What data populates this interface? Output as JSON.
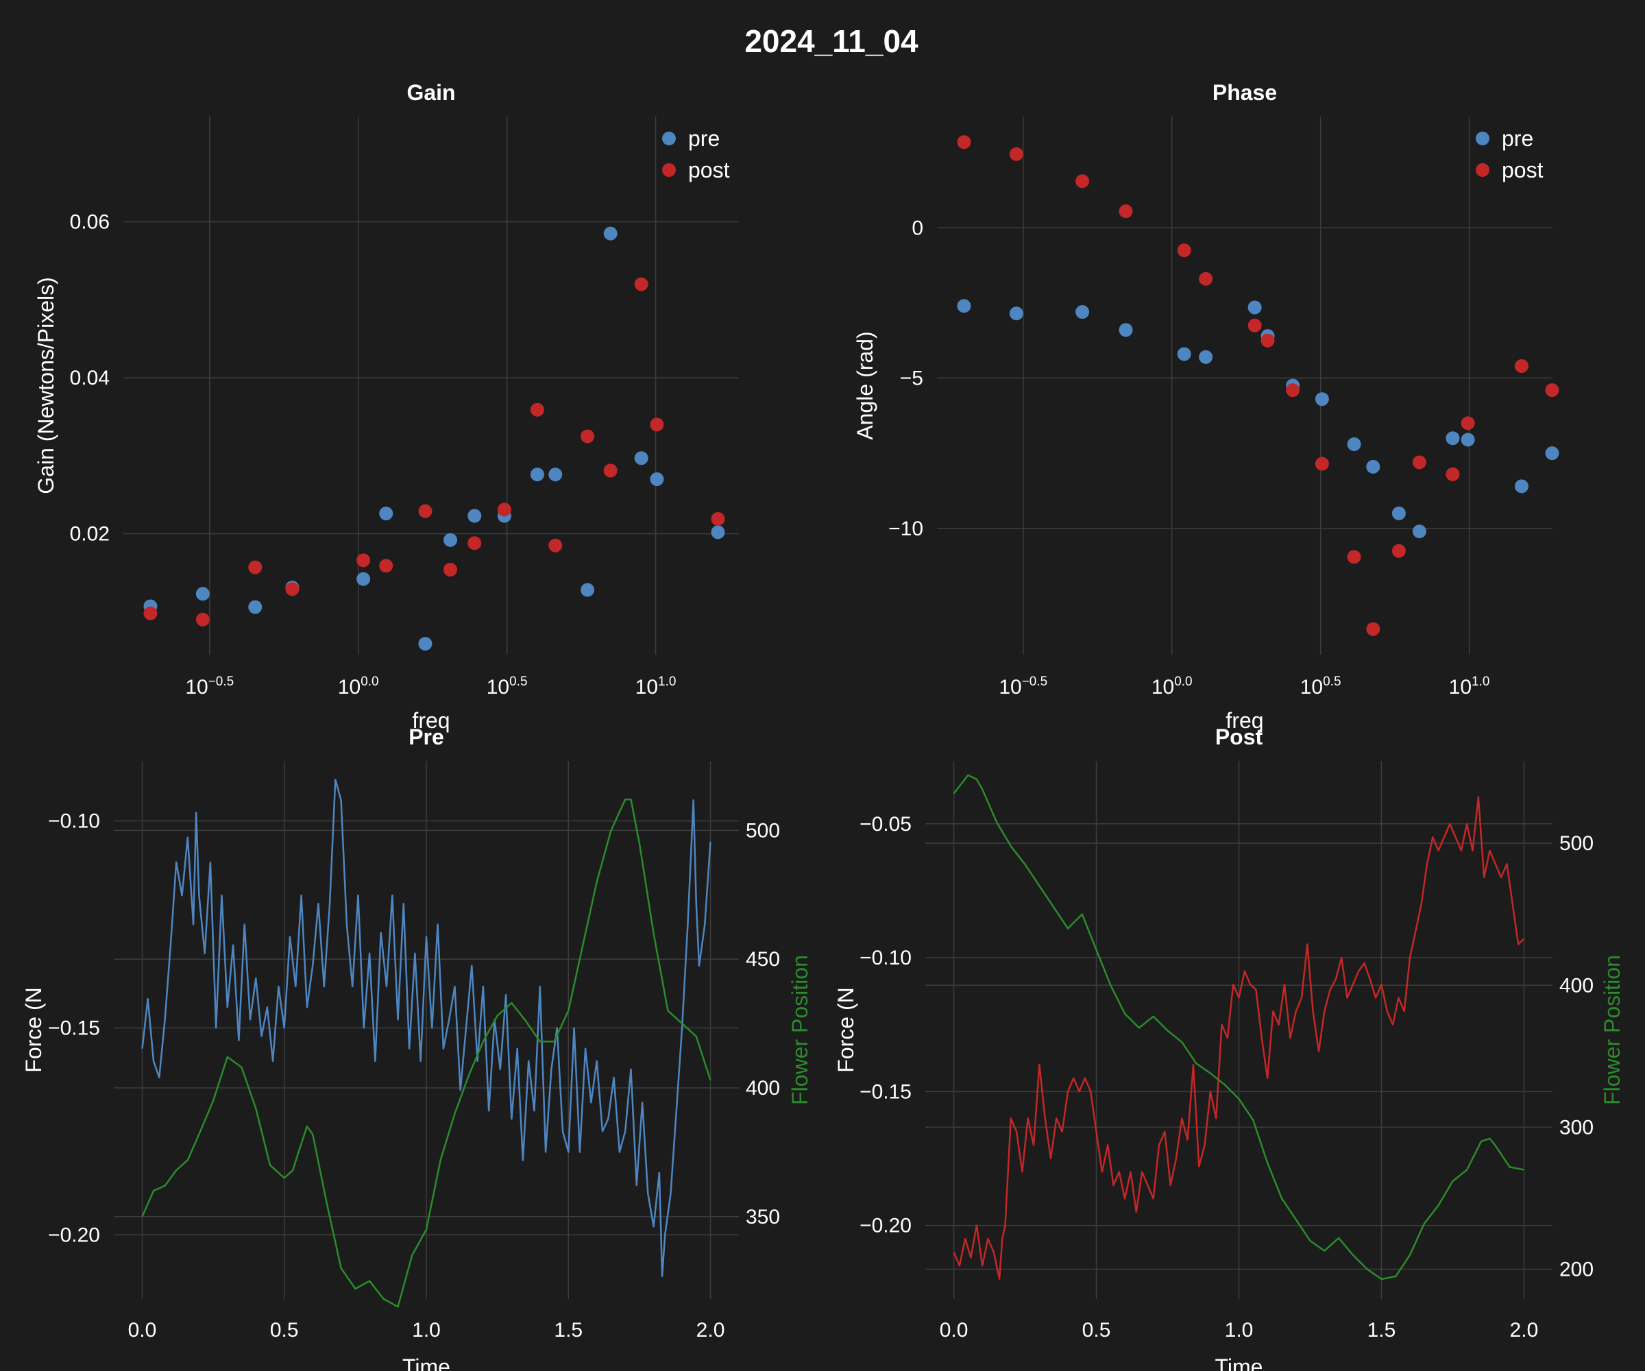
{
  "suptitle": "2024_11_04",
  "colors": {
    "background": "#1c1c1c",
    "pre": "#4e86c2",
    "post": "#c42727",
    "flower": "#2a8c2a",
    "text": "#ffffff",
    "grid": "#3d3d3d"
  },
  "chart_data": [
    {
      "type": "scatter",
      "title": "Gain",
      "xlabel": "freq",
      "ylabel": "Gain (Newtons/Pixels)",
      "x_scale": "log10",
      "x_ticks": [
        {
          "base": "10",
          "exp": "−0.5",
          "value": 0.3162
        },
        {
          "base": "10",
          "exp": "0.0",
          "value": 1.0
        },
        {
          "base": "10",
          "exp": "0.5",
          "value": 3.162
        },
        {
          "base": "10",
          "exp": "1.0",
          "value": 10.0
        }
      ],
      "xlim": [
        0.1622,
        19.05
      ],
      "y_ticks": [
        "0.02",
        "0.04",
        "0.06"
      ],
      "ylim": [
        0.0045,
        0.0735
      ],
      "grid": true,
      "legend": {
        "placement": "top-right",
        "entries": [
          "pre",
          "post"
        ]
      },
      "series": [
        {
          "name": "pre",
          "color": "#4e86c2",
          "x": [
            0.2,
            0.3,
            0.45,
            0.6,
            1.04,
            1.24,
            1.68,
            2.04,
            2.46,
            3.1,
            4.0,
            4.6,
            5.9,
            7.05,
            8.95,
            10.1,
            16.2
          ],
          "y": [
            0.0107,
            0.0123,
            0.0106,
            0.0131,
            0.0142,
            0.0226,
            0.0059,
            0.0192,
            0.0223,
            0.0223,
            0.0276,
            0.0276,
            0.0128,
            0.0585,
            0.0297,
            0.027,
            0.0202
          ]
        },
        {
          "name": "post",
          "color": "#c42727",
          "x": [
            0.2,
            0.3,
            0.45,
            0.6,
            1.04,
            1.24,
            1.68,
            2.04,
            2.46,
            3.1,
            4.0,
            4.6,
            5.9,
            7.05,
            8.95,
            10.1,
            16.2
          ],
          "y": [
            0.0098,
            0.009,
            0.0157,
            0.0129,
            0.0166,
            0.0159,
            0.0229,
            0.0154,
            0.0188,
            0.0231,
            0.0359,
            0.0185,
            0.0325,
            0.0281,
            0.052,
            0.034,
            0.0219
          ]
        }
      ]
    },
    {
      "type": "scatter",
      "title": "Phase",
      "xlabel": "freq",
      "ylabel": "Angle (rad)",
      "x_scale": "log10",
      "x_ticks": [
        {
          "base": "10",
          "exp": "−0.5",
          "value": 0.3162
        },
        {
          "base": "10",
          "exp": "0.0",
          "value": 1.0
        },
        {
          "base": "10",
          "exp": "0.5",
          "value": 3.162
        },
        {
          "base": "10",
          "exp": "1.0",
          "value": 10.0
        }
      ],
      "xlim": [
        0.1622,
        19.05
      ],
      "y_ticks": [
        "−10",
        "−5",
        "0"
      ],
      "y_tick_values": [
        -10,
        -5,
        0
      ],
      "ylim": [
        -14.2,
        3.7
      ],
      "grid": true,
      "legend": {
        "placement": "top-right",
        "entries": [
          "pre",
          "post"
        ]
      },
      "series": [
        {
          "name": "pre",
          "color": "#4e86c2",
          "x": [
            0.2,
            0.3,
            0.5,
            0.7,
            1.1,
            1.3,
            1.9,
            2.1,
            2.55,
            3.2,
            4.1,
            4.75,
            5.8,
            6.8,
            8.8,
            9.9,
            15.0,
            19.0
          ],
          "y": [
            -2.6,
            -2.85,
            -2.8,
            -3.4,
            -4.2,
            -4.3,
            -2.65,
            -3.6,
            -5.25,
            -5.7,
            -7.2,
            -7.95,
            -9.5,
            -10.1,
            -7.0,
            -7.05,
            -8.6,
            -7.5
          ]
        },
        {
          "name": "post",
          "color": "#c42727",
          "x": [
            0.2,
            0.3,
            0.5,
            0.7,
            1.1,
            1.3,
            1.9,
            2.1,
            2.55,
            3.2,
            4.1,
            4.75,
            5.8,
            6.8,
            8.8,
            9.9,
            15.0,
            19.0
          ],
          "y": [
            2.85,
            2.45,
            1.55,
            0.55,
            -0.75,
            -1.7,
            -3.25,
            -3.75,
            -5.4,
            -7.85,
            -10.95,
            -13.35,
            -10.75,
            -7.8,
            -8.2,
            -6.5,
            -4.6,
            -5.4
          ]
        }
      ]
    },
    {
      "type": "line",
      "title": "Pre",
      "xlabel": "Time",
      "ylabel": "Force (N",
      "y2label": "Flower Position",
      "x_ticks": [
        "0.0",
        "0.5",
        "1.0",
        "1.5",
        "2.0"
      ],
      "xlim": [
        -0.1,
        2.1
      ],
      "y_ticks": [
        "−0.20",
        "−0.15",
        "−0.10"
      ],
      "y_tick_values": [
        -0.2,
        -0.15,
        -0.1
      ],
      "ylim": [
        -0.2155,
        -0.0855
      ],
      "y2_ticks": [
        "350",
        "400",
        "450",
        "500"
      ],
      "y2_tick_values": [
        350,
        400,
        450,
        500
      ],
      "y2lim": [
        318,
        527
      ],
      "grid": true,
      "series": [
        {
          "name": "Force",
          "axis": "left",
          "color": "#4e86c2",
          "x": [
            0.0,
            0.02,
            0.04,
            0.06,
            0.08,
            0.1,
            0.12,
            0.14,
            0.16,
            0.18,
            0.19,
            0.2,
            0.22,
            0.24,
            0.26,
            0.28,
            0.3,
            0.32,
            0.34,
            0.36,
            0.38,
            0.4,
            0.42,
            0.44,
            0.46,
            0.48,
            0.5,
            0.52,
            0.54,
            0.56,
            0.58,
            0.6,
            0.62,
            0.64,
            0.66,
            0.68,
            0.7,
            0.72,
            0.74,
            0.76,
            0.78,
            0.8,
            0.82,
            0.84,
            0.86,
            0.88,
            0.9,
            0.92,
            0.94,
            0.96,
            0.98,
            1.0,
            1.02,
            1.04,
            1.06,
            1.08,
            1.1,
            1.12,
            1.14,
            1.16,
            1.18,
            1.2,
            1.22,
            1.24,
            1.26,
            1.28,
            1.3,
            1.32,
            1.34,
            1.36,
            1.38,
            1.4,
            1.42,
            1.44,
            1.46,
            1.48,
            1.5,
            1.52,
            1.54,
            1.56,
            1.58,
            1.6,
            1.62,
            1.64,
            1.66,
            1.68,
            1.7,
            1.72,
            1.74,
            1.76,
            1.78,
            1.8,
            1.82,
            1.83,
            1.84,
            1.86,
            1.88,
            1.9,
            1.92,
            1.94,
            1.95,
            1.96,
            1.98,
            2.0
          ],
          "y": [
            -0.155,
            -0.143,
            -0.158,
            -0.162,
            -0.148,
            -0.13,
            -0.11,
            -0.118,
            -0.104,
            -0.125,
            -0.098,
            -0.118,
            -0.132,
            -0.11,
            -0.15,
            -0.118,
            -0.145,
            -0.13,
            -0.153,
            -0.125,
            -0.148,
            -0.138,
            -0.152,
            -0.145,
            -0.158,
            -0.14,
            -0.15,
            -0.128,
            -0.14,
            -0.118,
            -0.145,
            -0.135,
            -0.12,
            -0.14,
            -0.12,
            -0.09,
            -0.095,
            -0.125,
            -0.14,
            -0.118,
            -0.15,
            -0.132,
            -0.158,
            -0.127,
            -0.14,
            -0.118,
            -0.148,
            -0.12,
            -0.155,
            -0.132,
            -0.158,
            -0.128,
            -0.15,
            -0.125,
            -0.155,
            -0.148,
            -0.14,
            -0.165,
            -0.15,
            -0.135,
            -0.158,
            -0.14,
            -0.17,
            -0.148,
            -0.16,
            -0.142,
            -0.172,
            -0.155,
            -0.182,
            -0.158,
            -0.17,
            -0.14,
            -0.18,
            -0.16,
            -0.15,
            -0.175,
            -0.18,
            -0.15,
            -0.18,
            -0.155,
            -0.168,
            -0.158,
            -0.175,
            -0.172,
            -0.162,
            -0.18,
            -0.175,
            -0.16,
            -0.188,
            -0.168,
            -0.19,
            -0.198,
            -0.185,
            -0.21,
            -0.2,
            -0.19,
            -0.17,
            -0.15,
            -0.125,
            -0.095,
            -0.12,
            -0.135,
            -0.125,
            -0.105
          ]
        },
        {
          "name": "Flower Position",
          "axis": "right",
          "color": "#2a8c2a",
          "x": [
            0.0,
            0.04,
            0.08,
            0.12,
            0.16,
            0.2,
            0.25,
            0.3,
            0.35,
            0.4,
            0.45,
            0.5,
            0.53,
            0.55,
            0.58,
            0.6,
            0.65,
            0.7,
            0.75,
            0.8,
            0.85,
            0.9,
            0.95,
            1.0,
            1.05,
            1.1,
            1.15,
            1.2,
            1.25,
            1.3,
            1.35,
            1.4,
            1.45,
            1.5,
            1.55,
            1.6,
            1.65,
            1.7,
            1.72,
            1.75,
            1.8,
            1.85,
            1.9,
            1.95,
            2.0
          ],
          "y": [
            350,
            360,
            362,
            368,
            372,
            382,
            395,
            412,
            408,
            392,
            370,
            365,
            368,
            375,
            385,
            382,
            355,
            330,
            322,
            325,
            318,
            315,
            335,
            345,
            372,
            390,
            405,
            418,
            428,
            433,
            426,
            418,
            418,
            430,
            455,
            480,
            500,
            512,
            512,
            495,
            460,
            430,
            425,
            420,
            403
          ]
        }
      ]
    },
    {
      "type": "line",
      "title": "Post",
      "xlabel": "Time",
      "ylabel": "Force (N",
      "y2label": "Flower Position",
      "x_ticks": [
        "0.0",
        "0.5",
        "1.0",
        "1.5",
        "2.0"
      ],
      "xlim": [
        -0.1,
        2.1
      ],
      "y_ticks": [
        "−0.20",
        "−0.15",
        "−0.10",
        "−0.05"
      ],
      "y_tick_values": [
        -0.2,
        -0.15,
        -0.1,
        -0.05
      ],
      "ylim": [
        -0.2275,
        -0.0265
      ],
      "y2_ticks": [
        "200",
        "300",
        "400",
        "500"
      ],
      "y2_tick_values": [
        200,
        300,
        400,
        500
      ],
      "y2lim": [
        179,
        558
      ],
      "grid": true,
      "series": [
        {
          "name": "Force",
          "axis": "left",
          "color": "#c42727",
          "x": [
            0.0,
            0.02,
            0.04,
            0.06,
            0.08,
            0.1,
            0.12,
            0.14,
            0.16,
            0.17,
            0.18,
            0.2,
            0.22,
            0.24,
            0.26,
            0.28,
            0.3,
            0.32,
            0.34,
            0.36,
            0.38,
            0.4,
            0.42,
            0.44,
            0.46,
            0.48,
            0.5,
            0.52,
            0.54,
            0.56,
            0.58,
            0.6,
            0.62,
            0.64,
            0.66,
            0.68,
            0.7,
            0.72,
            0.74,
            0.76,
            0.78,
            0.8,
            0.82,
            0.84,
            0.86,
            0.88,
            0.9,
            0.92,
            0.94,
            0.96,
            0.98,
            1.0,
            1.02,
            1.04,
            1.06,
            1.08,
            1.1,
            1.12,
            1.14,
            1.16,
            1.18,
            1.2,
            1.22,
            1.24,
            1.26,
            1.28,
            1.3,
            1.32,
            1.34,
            1.36,
            1.38,
            1.4,
            1.42,
            1.44,
            1.46,
            1.48,
            1.5,
            1.52,
            1.54,
            1.56,
            1.58,
            1.6,
            1.62,
            1.64,
            1.66,
            1.68,
            1.7,
            1.72,
            1.74,
            1.76,
            1.78,
            1.8,
            1.82,
            1.84,
            1.86,
            1.88,
            1.9,
            1.92,
            1.94,
            1.96,
            1.98,
            2.0
          ],
          "y": [
            -0.21,
            -0.215,
            -0.205,
            -0.212,
            -0.2,
            -0.215,
            -0.205,
            -0.21,
            -0.22,
            -0.205,
            -0.2,
            -0.16,
            -0.165,
            -0.18,
            -0.16,
            -0.17,
            -0.14,
            -0.16,
            -0.175,
            -0.16,
            -0.165,
            -0.15,
            -0.145,
            -0.15,
            -0.145,
            -0.15,
            -0.165,
            -0.18,
            -0.17,
            -0.185,
            -0.18,
            -0.19,
            -0.18,
            -0.195,
            -0.18,
            -0.185,
            -0.19,
            -0.17,
            -0.165,
            -0.185,
            -0.175,
            -0.16,
            -0.168,
            -0.14,
            -0.178,
            -0.17,
            -0.15,
            -0.16,
            -0.125,
            -0.13,
            -0.11,
            -0.115,
            -0.105,
            -0.11,
            -0.112,
            -0.13,
            -0.145,
            -0.12,
            -0.125,
            -0.11,
            -0.13,
            -0.12,
            -0.115,
            -0.095,
            -0.12,
            -0.135,
            -0.12,
            -0.112,
            -0.108,
            -0.1,
            -0.115,
            -0.11,
            -0.105,
            -0.102,
            -0.108,
            -0.115,
            -0.11,
            -0.12,
            -0.125,
            -0.115,
            -0.12,
            -0.1,
            -0.09,
            -0.08,
            -0.065,
            -0.055,
            -0.06,
            -0.055,
            -0.05,
            -0.055,
            -0.06,
            -0.05,
            -0.06,
            -0.04,
            -0.07,
            -0.06,
            -0.065,
            -0.07,
            -0.065,
            -0.08,
            -0.095,
            -0.093
          ]
        },
        {
          "name": "Flower Position",
          "axis": "right",
          "color": "#2a8c2a",
          "x": [
            0.0,
            0.05,
            0.08,
            0.1,
            0.15,
            0.2,
            0.25,
            0.3,
            0.35,
            0.4,
            0.45,
            0.5,
            0.55,
            0.6,
            0.65,
            0.7,
            0.75,
            0.8,
            0.85,
            0.9,
            0.95,
            1.0,
            1.05,
            1.1,
            1.15,
            1.2,
            1.25,
            1.3,
            1.35,
            1.4,
            1.45,
            1.5,
            1.55,
            1.6,
            1.65,
            1.7,
            1.75,
            1.8,
            1.85,
            1.88,
            1.9,
            1.95,
            2.0
          ],
          "y": [
            535,
            548,
            545,
            538,
            515,
            498,
            485,
            470,
            455,
            440,
            450,
            425,
            400,
            380,
            370,
            378,
            368,
            360,
            345,
            338,
            330,
            320,
            305,
            275,
            250,
            235,
            220,
            213,
            222,
            210,
            200,
            193,
            195,
            210,
            232,
            245,
            262,
            270,
            290,
            292,
            287,
            272,
            270
          ]
        }
      ]
    }
  ]
}
